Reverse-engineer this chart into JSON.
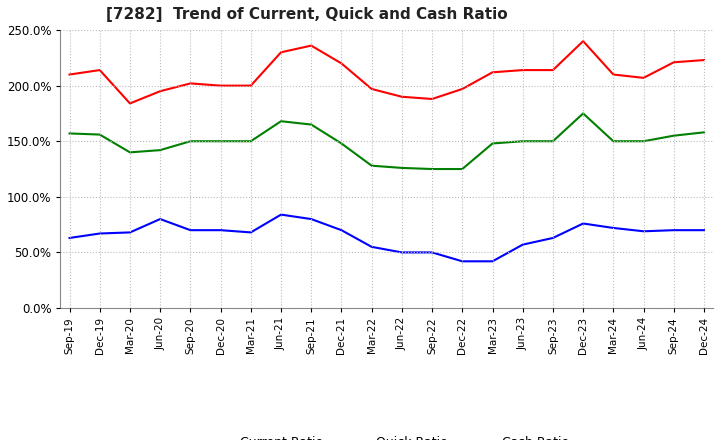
{
  "title": "[7282]  Trend of Current, Quick and Cash Ratio",
  "x_labels": [
    "Sep-19",
    "Dec-19",
    "Mar-20",
    "Jun-20",
    "Sep-20",
    "Dec-20",
    "Mar-21",
    "Jun-21",
    "Sep-21",
    "Dec-21",
    "Mar-22",
    "Jun-22",
    "Sep-22",
    "Dec-22",
    "Mar-23",
    "Jun-23",
    "Sep-23",
    "Dec-23",
    "Mar-24",
    "Jun-24",
    "Sep-24",
    "Dec-24"
  ],
  "current_ratio": [
    2.1,
    2.14,
    1.84,
    1.95,
    2.02,
    2.0,
    2.0,
    2.3,
    2.36,
    2.2,
    1.97,
    1.9,
    1.88,
    1.97,
    2.12,
    2.14,
    2.14,
    2.4,
    2.1,
    2.07,
    2.21,
    2.23
  ],
  "quick_ratio": [
    1.57,
    1.56,
    1.4,
    1.42,
    1.5,
    1.5,
    1.5,
    1.68,
    1.65,
    1.48,
    1.28,
    1.26,
    1.25,
    1.25,
    1.48,
    1.5,
    1.5,
    1.75,
    1.5,
    1.5,
    1.55,
    1.58
  ],
  "cash_ratio": [
    0.63,
    0.67,
    0.68,
    0.8,
    0.7,
    0.7,
    0.68,
    0.84,
    0.8,
    0.7,
    0.55,
    0.5,
    0.5,
    0.42,
    0.42,
    0.57,
    0.63,
    0.76,
    0.72,
    0.69,
    0.7,
    0.7
  ],
  "current_color": "#ff0000",
  "quick_color": "#008000",
  "cash_color": "#0000ff",
  "ylim": [
    0.0,
    2.5
  ],
  "yticks": [
    0.0,
    0.5,
    1.0,
    1.5,
    2.0,
    2.5
  ],
  "background_color": "#ffffff",
  "grid_color": "#bbbbbb"
}
